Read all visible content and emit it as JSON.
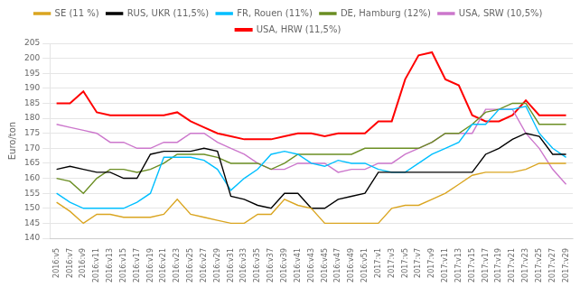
{
  "chart_data": {
    "type": "line",
    "categories": [
      "2016:v5",
      "2016:v7",
      "2016:v9",
      "2016:v11",
      "2016:v13",
      "2016:v15",
      "2016:v17",
      "2016:v19",
      "2016:v21",
      "2016:v23",
      "2016:v25",
      "2016:v27",
      "2016:v29",
      "2016:v31",
      "2016:v33",
      "2016:v35",
      "2016:v37",
      "2016:v39",
      "2016:v41",
      "2016:v43",
      "2016:v45",
      "2016:v47",
      "2016:v49",
      "2016:v51",
      "2017:v1",
      "2017:v3",
      "2017:v5",
      "2017:v7",
      "2017:v9",
      "2017:v11",
      "2017:v13",
      "2017:v15",
      "2017:v17",
      "2017:v19",
      "2017:v21",
      "2017:v23",
      "2017:v25",
      "2017:v27",
      "2017:v29"
    ],
    "series": [
      {
        "name": "SE (11 %)",
        "color": "#DAA520",
        "values": [
          152,
          149,
          145,
          148,
          148,
          147,
          147,
          147,
          148,
          153,
          148,
          147,
          146,
          145,
          145,
          148,
          148,
          153,
          151,
          150,
          145,
          145,
          145,
          145,
          145,
          150,
          151,
          151,
          153,
          155,
          158,
          161,
          162,
          162,
          162,
          163,
          165,
          165,
          165
        ]
      },
      {
        "name": "RUS, UKR (11,5%)",
        "color": "#000000",
        "values": [
          163,
          164,
          163,
          162,
          162,
          160,
          160,
          168,
          169,
          169,
          169,
          170,
          169,
          154,
          153,
          151,
          150,
          155,
          155,
          150,
          150,
          153,
          154,
          155,
          162,
          162,
          162,
          162,
          162,
          162,
          162,
          162,
          168,
          170,
          173,
          175,
          174,
          168,
          168
        ]
      },
      {
        "name": "FR, Rouen (11%)",
        "color": "#00BFFF",
        "values": [
          155,
          152,
          150,
          150,
          150,
          150,
          152,
          155,
          167,
          167,
          167,
          166,
          163,
          156,
          160,
          163,
          168,
          169,
          168,
          165,
          164,
          166,
          165,
          165,
          163,
          162,
          162,
          165,
          168,
          170,
          172,
          178,
          178,
          183,
          183,
          184,
          175,
          170,
          167
        ]
      },
      {
        "name": "DE, Hamburg (12%)",
        "color": "#6B8E23",
        "values": [
          160,
          159,
          155,
          160,
          163,
          163,
          162,
          163,
          165,
          168,
          168,
          168,
          167,
          165,
          165,
          165,
          163,
          165,
          168,
          168,
          168,
          168,
          168,
          170,
          170,
          170,
          170,
          170,
          172,
          175,
          175,
          178,
          182,
          183,
          185,
          185,
          178,
          178,
          178
        ]
      },
      {
        "name": "USA, SRW (10,5%)",
        "color": "#CC77CC",
        "values": [
          178,
          177,
          176,
          175,
          172,
          172,
          170,
          170,
          172,
          172,
          175,
          175,
          172,
          170,
          168,
          165,
          163,
          163,
          165,
          165,
          165,
          162,
          163,
          163,
          165,
          165,
          168,
          170,
          172,
          175,
          175,
          175,
          183,
          183,
          183,
          175,
          170,
          163,
          158
        ]
      },
      {
        "name": "USA, HRW (11,5%)",
        "color": "#FF0000",
        "values": [
          185,
          185,
          189,
          182,
          181,
          181,
          181,
          181,
          181,
          182,
          179,
          177,
          175,
          174,
          173,
          173,
          173,
          174,
          175,
          175,
          174,
          175,
          175,
          175,
          179,
          179,
          193,
          201,
          202,
          193,
          191,
          181,
          179,
          179,
          181,
          186,
          181,
          181,
          181
        ]
      }
    ],
    "ylabel": "Euro/ton",
    "ylim": [
      140,
      205
    ],
    "yticks": [
      140,
      145,
      150,
      155,
      160,
      165,
      170,
      175,
      180,
      185,
      190,
      195,
      200,
      205
    ],
    "grid": true,
    "legend": "top"
  }
}
